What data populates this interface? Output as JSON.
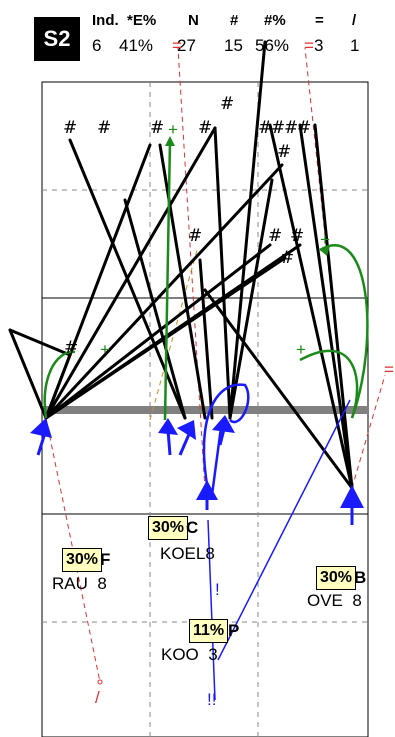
{
  "badge": "S2",
  "stats": {
    "headers": [
      "Ind.",
      "*E%",
      "N",
      "#",
      "#%",
      "=",
      "/"
    ],
    "values": [
      "6",
      "41%",
      "27",
      "15",
      "56%",
      "3",
      "1"
    ]
  },
  "players": {
    "F": {
      "pct": "30%",
      "tag": "F",
      "name": "RAU",
      "num": "8"
    },
    "C": {
      "pct": "30%",
      "tag": "C",
      "name": "KOEL",
      "num": "8"
    },
    "B": {
      "pct": "30%",
      "tag": "B",
      "name": "OVE",
      "num": "8"
    },
    "P": {
      "pct": "11%",
      "tag": "P",
      "name": "KOO",
      "num": "3"
    }
  },
  "symbols": {
    "hash": "#",
    "plus": "+",
    "eq": "=",
    "excl": "!",
    "dexcl": "!!",
    "slash": "/"
  },
  "colors": {
    "attack": "#000000",
    "green": "#1a8a1a",
    "blue": "#1a1aff",
    "red": "#e03030",
    "net": "#808080"
  }
}
